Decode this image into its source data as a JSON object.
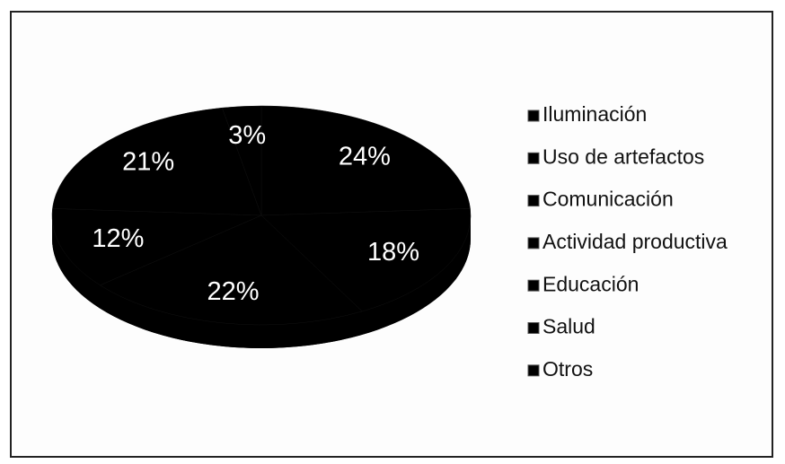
{
  "chart_data": {
    "type": "pie",
    "categories": [
      "Iluminación",
      "Uso de artefactos",
      "Comunicación",
      "Actividad productiva",
      "Educación",
      "Salud",
      "Otros"
    ],
    "values": [
      24,
      18,
      22,
      12,
      21,
      3,
      null
    ],
    "value_labels": [
      "24%",
      "18%",
      "22%",
      "12%",
      "21%",
      "3%",
      null
    ],
    "color": "#000000",
    "legend": "right"
  }
}
